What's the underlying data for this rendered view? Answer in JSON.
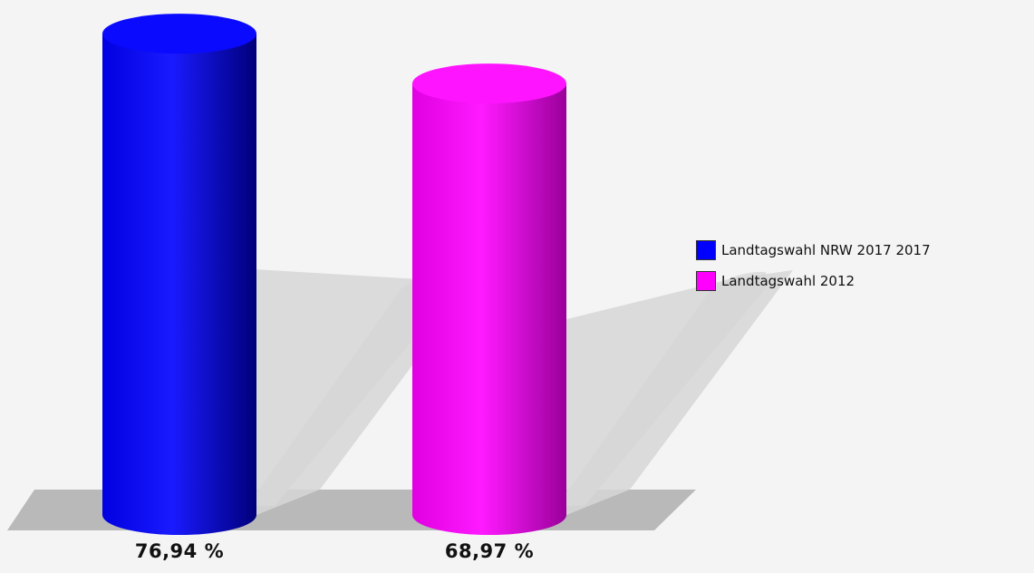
{
  "chart_data": {
    "type": "bar",
    "style": "3d-cylinder",
    "categories": [
      "Landtagswahl NRW 2017 2017",
      "Landtagswahl 2012"
    ],
    "values": [
      76.94,
      68.97
    ],
    "value_labels": [
      "76,94 %",
      "68,97 %"
    ],
    "unit": "%",
    "ylim": [
      0,
      80
    ],
    "grid": false,
    "legend_position": "right",
    "series": [
      {
        "name": "Landtagswahl NRW 2017 2017",
        "color": "#0000ff"
      },
      {
        "name": "Landtagswahl 2012",
        "color": "#ff00ff"
      }
    ]
  }
}
